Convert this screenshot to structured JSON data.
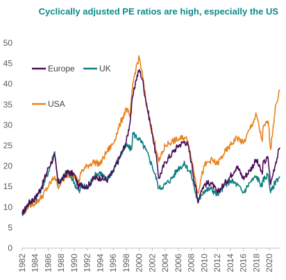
{
  "chart_data": {
    "type": "line",
    "title": "Cyclically adjusted PE ratios are high, especially the US",
    "xlabel": "",
    "ylabel": "",
    "ylim": [
      0,
      50
    ],
    "xlim": [
      1982,
      2021.7
    ],
    "y_ticks": [
      0,
      5,
      10,
      15,
      20,
      25,
      30,
      35,
      40,
      45,
      50
    ],
    "x_ticks": [
      "1982",
      "1984",
      "1986",
      "1988",
      "1990",
      "1992",
      "1994",
      "1996",
      "1998",
      "2000",
      "2002",
      "2004",
      "2006",
      "2008",
      "2010",
      "2012",
      "2014",
      "2016",
      "2018",
      "2020"
    ],
    "grid": false,
    "legend_placement": "top-left",
    "series": [
      {
        "name": "Europe",
        "color": "#4b0a56",
        "points": [
          [
            1982,
            8.3
          ],
          [
            1983,
            11
          ],
          [
            1984,
            12.2
          ],
          [
            1985,
            15
          ],
          [
            1986,
            19.5
          ],
          [
            1986.5,
            21
          ],
          [
            1987,
            22.5
          ],
          [
            1987.5,
            16
          ],
          [
            1988,
            16.5
          ],
          [
            1989,
            18.5
          ],
          [
            1990,
            18
          ],
          [
            1990.7,
            14.8
          ],
          [
            1991,
            15.5
          ],
          [
            1992,
            15
          ],
          [
            1993,
            17
          ],
          [
            1994,
            17.2
          ],
          [
            1995,
            16.5
          ],
          [
            1996,
            18.8
          ],
          [
            1997,
            22
          ],
          [
            1998,
            26
          ],
          [
            1998.5,
            30
          ],
          [
            1999,
            37
          ],
          [
            1999.5,
            41
          ],
          [
            2000,
            43.5
          ],
          [
            2000.5,
            41
          ],
          [
            2001,
            36
          ],
          [
            2002,
            28
          ],
          [
            2002.8,
            20
          ],
          [
            2003,
            17
          ],
          [
            2004,
            21
          ],
          [
            2005,
            23
          ],
          [
            2006,
            25
          ],
          [
            2007,
            26
          ],
          [
            2007.5,
            25
          ],
          [
            2008,
            21
          ],
          [
            2009,
            11.5
          ],
          [
            2009.5,
            14
          ],
          [
            2010,
            15.5
          ],
          [
            2011,
            16
          ],
          [
            2012,
            13.5
          ],
          [
            2013,
            15.5
          ],
          [
            2014,
            17.5
          ],
          [
            2015,
            20
          ],
          [
            2016,
            17
          ],
          [
            2017,
            19
          ],
          [
            2018,
            21.5
          ],
          [
            2018.9,
            18
          ],
          [
            2019,
            20.5
          ],
          [
            2019.8,
            22
          ],
          [
            2020.2,
            15.5
          ],
          [
            2020.6,
            18.5
          ],
          [
            2021,
            21
          ],
          [
            2021.6,
            24.5
          ]
        ]
      },
      {
        "name": "UK",
        "color": "#0f7d80",
        "points": [
          [
            1982,
            8.3
          ],
          [
            1983,
            11
          ],
          [
            1984,
            12
          ],
          [
            1985,
            14.5
          ],
          [
            1986,
            18.5
          ],
          [
            1987,
            23.5
          ],
          [
            1987.5,
            16
          ],
          [
            1988,
            16.5
          ],
          [
            1989,
            19
          ],
          [
            1990,
            16
          ],
          [
            1990.8,
            13.5
          ],
          [
            1991,
            15.5
          ],
          [
            1992,
            14.5
          ],
          [
            1993,
            17.5
          ],
          [
            1994,
            18.5
          ],
          [
            1995,
            16.5
          ],
          [
            1996,
            19
          ],
          [
            1997,
            22.5
          ],
          [
            1998,
            25
          ],
          [
            1998.8,
            24
          ],
          [
            1999,
            28
          ],
          [
            2000,
            26.5
          ],
          [
            2001,
            24
          ],
          [
            2002,
            20
          ],
          [
            2002.8,
            16
          ],
          [
            2003,
            14.5
          ],
          [
            2004,
            15.5
          ],
          [
            2005,
            17
          ],
          [
            2006,
            19.5
          ],
          [
            2007,
            20.5
          ],
          [
            2008,
            18
          ],
          [
            2009,
            11
          ],
          [
            2009.5,
            13
          ],
          [
            2010,
            14
          ],
          [
            2011,
            14.5
          ],
          [
            2012,
            13
          ],
          [
            2013,
            15
          ],
          [
            2014,
            16.5
          ],
          [
            2015,
            15.5
          ],
          [
            2016,
            13.5
          ],
          [
            2017,
            16
          ],
          [
            2018,
            17.5
          ],
          [
            2018.9,
            15
          ],
          [
            2019,
            16.5
          ],
          [
            2019.8,
            18
          ],
          [
            2020.2,
            13.5
          ],
          [
            2020.6,
            15
          ],
          [
            2021,
            16.5
          ],
          [
            2021.6,
            17.5
          ]
        ]
      },
      {
        "name": "USA",
        "color": "#e8821c",
        "points": [
          [
            1982,
            8
          ],
          [
            1983,
            10.5
          ],
          [
            1984,
            11
          ],
          [
            1985,
            12.5
          ],
          [
            1986,
            15
          ],
          [
            1987,
            17.5
          ],
          [
            1987.5,
            15
          ],
          [
            1988,
            16
          ],
          [
            1989,
            18
          ],
          [
            1990,
            17.5
          ],
          [
            1990.8,
            16
          ],
          [
            1991,
            18.5
          ],
          [
            1992,
            20
          ],
          [
            1993,
            21
          ],
          [
            1994,
            20.5
          ],
          [
            1995,
            23.5
          ],
          [
            1996,
            25.5
          ],
          [
            1997,
            30
          ],
          [
            1998,
            34
          ],
          [
            1998.6,
            32
          ],
          [
            1999,
            40
          ],
          [
            1999.5,
            44
          ],
          [
            2000,
            46.5
          ],
          [
            2000.5,
            42
          ],
          [
            2001,
            36
          ],
          [
            2002,
            28
          ],
          [
            2002.8,
            23
          ],
          [
            2003,
            21
          ],
          [
            2004,
            25
          ],
          [
            2005,
            26
          ],
          [
            2006,
            26.5
          ],
          [
            2007,
            27
          ],
          [
            2007.5,
            26
          ],
          [
            2008,
            22
          ],
          [
            2009,
            13.5
          ],
          [
            2009.5,
            17
          ],
          [
            2010,
            20
          ],
          [
            2011,
            21.5
          ],
          [
            2012,
            20.5
          ],
          [
            2013,
            23
          ],
          [
            2014,
            25
          ],
          [
            2015,
            27
          ],
          [
            2016,
            25.5
          ],
          [
            2017,
            29
          ],
          [
            2018,
            32.5
          ],
          [
            2018.9,
            26
          ],
          [
            2019,
            29
          ],
          [
            2019.8,
            31
          ],
          [
            2020.2,
            24
          ],
          [
            2020.6,
            30
          ],
          [
            2021,
            35
          ],
          [
            2021.6,
            38.5
          ]
        ]
      }
    ]
  }
}
